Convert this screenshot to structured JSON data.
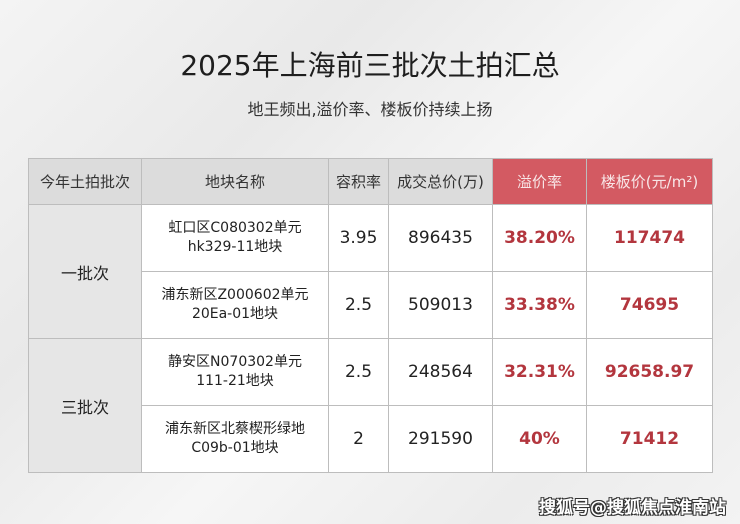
{
  "title": "2025年上海前三批次土拍汇总",
  "subtitle": "地王频出,溢价率、楼板价持续上扬",
  "headers": [
    "今年土拍批次",
    "地块名称",
    "容积率",
    "成交总价(万)",
    "溢价率",
    "楼板价(元/m²)"
  ],
  "batches": [
    {
      "label": "一批次",
      "rows": [
        {
          "name1": "虹口区C080302单元",
          "name2": "hk329-11地块",
          "far": "3.95",
          "total": "896435",
          "premium": "38.20%",
          "floor": "117474"
        },
        {
          "name1": "浦东新区Z000602单元",
          "name2": "20Ea-01地块",
          "far": "2.5",
          "total": "509013",
          "premium": "33.38%",
          "floor": "74695"
        }
      ]
    },
    {
      "label": "三批次",
      "rows": [
        {
          "name1": "静安区N070302单元",
          "name2": "111-21地块",
          "far": "2.5",
          "total": "248564",
          "premium": "32.31%",
          "floor": "92658.97"
        },
        {
          "name1": "浦东新区北蔡楔形绿地",
          "name2": "C09b-01地块",
          "far": "2",
          "total": "291590",
          "premium": "40%",
          "floor": "71412"
        }
      ]
    }
  ],
  "watermark": "搜狐号@搜狐焦点淮南站",
  "colors": {
    "accent": "#d35a62",
    "value_red": "#b3363e"
  }
}
